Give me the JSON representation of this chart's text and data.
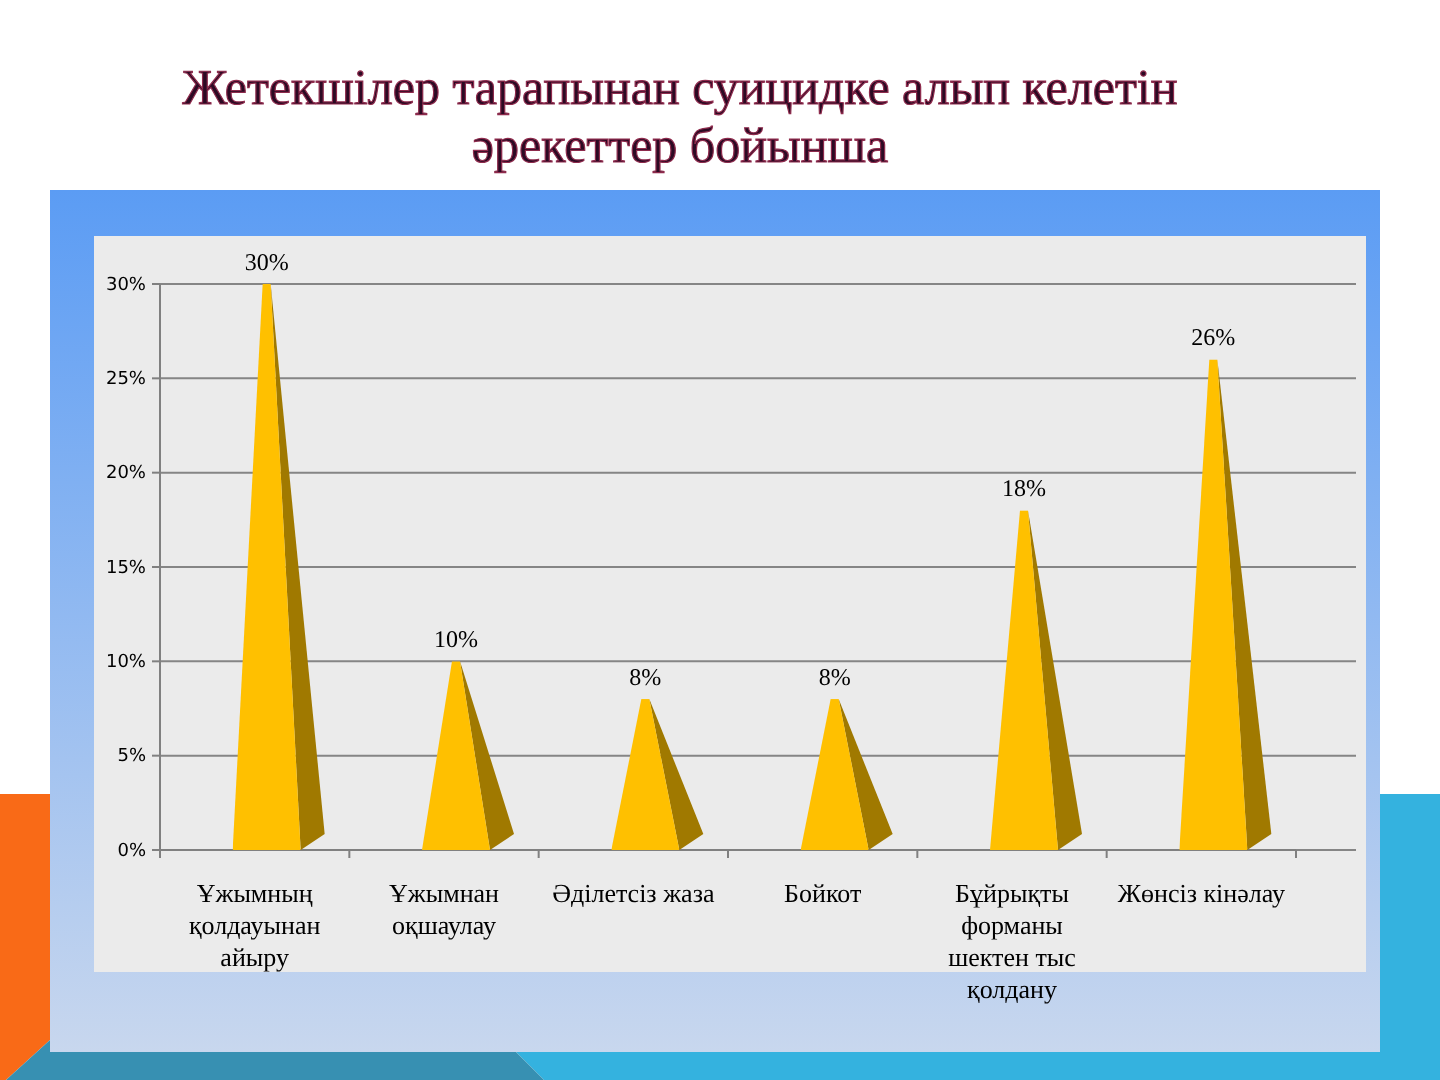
{
  "chart_data": {
    "type": "bar",
    "title": "Жетекшілер тарапынан суицидке алып келетін әрекеттер бойынша",
    "categories": [
      "Ұжымның қолдауынан айыру",
      "Ұжымнан оқшаулау",
      "Әділетсіз жаза",
      "Бойкот",
      "Бұйрықты форманы шектен тыс қолдану",
      "Жөнсіз кінәлау"
    ],
    "values": [
      30,
      10,
      8,
      8,
      18,
      26
    ],
    "value_labels": [
      "30%",
      "10%",
      "8%",
      "8%",
      "18%",
      "26%"
    ],
    "color": "#ffc000",
    "ylim": [
      0,
      30
    ],
    "yticks": [
      {
        "value": 0,
        "label": "0%"
      },
      {
        "value": 5,
        "label": "5%"
      },
      {
        "value": 10,
        "label": "10%"
      },
      {
        "value": 15,
        "label": "15%"
      },
      {
        "value": 20,
        "label": "20%"
      },
      {
        "value": 25,
        "label": "25%"
      },
      {
        "value": 30,
        "label": "30%"
      }
    ],
    "grid": "y"
  }
}
